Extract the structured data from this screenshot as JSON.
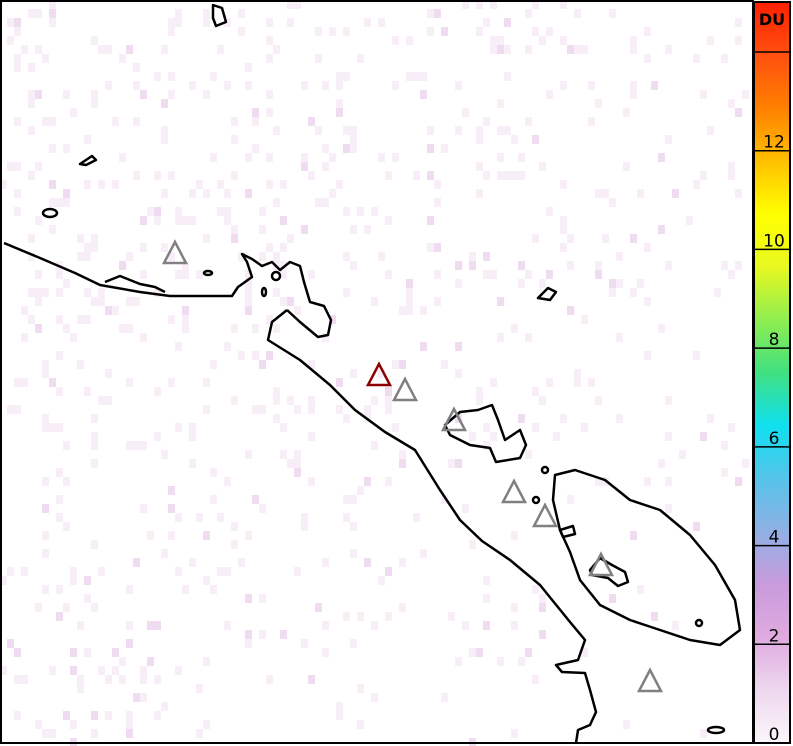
{
  "map": {
    "coastline_color": "#000000",
    "background_color": "#ffffff",
    "volcanoes": [
      {
        "name": "",
        "highlighted": false,
        "color": "#808080"
      },
      {
        "name": "",
        "highlighted": true,
        "color": "#8b0000"
      },
      {
        "name": "",
        "highlighted": false,
        "color": "#808080"
      },
      {
        "name": "",
        "highlighted": false,
        "color": "#808080"
      },
      {
        "name": "",
        "highlighted": false,
        "color": "#808080"
      },
      {
        "name": "",
        "highlighted": false,
        "color": "#808080"
      },
      {
        "name": "",
        "highlighted": false,
        "color": "#808080"
      },
      {
        "name": "",
        "highlighted": false,
        "color": "#808080"
      }
    ]
  },
  "colorbar": {
    "unit": "DU",
    "min": 0,
    "max": 14,
    "ticks": [
      {
        "value": 0,
        "label": "0"
      },
      {
        "value": 2,
        "label": "2"
      },
      {
        "value": 4,
        "label": "4"
      },
      {
        "value": 6,
        "label": "6"
      },
      {
        "value": 8,
        "label": "8"
      },
      {
        "value": 10,
        "label": "10"
      },
      {
        "value": 12,
        "label": "12"
      },
      {
        "value": 14,
        "label": ""
      }
    ],
    "colors": [
      "#fbf6fb",
      "#eed8ee",
      "#dfaadf",
      "#c99bdc",
      "#90b0e4",
      "#55c4ea",
      "#10e0f0",
      "#40e080",
      "#90ee50",
      "#e8f820",
      "#ffff00",
      "#ffc000",
      "#ff8000",
      "#ff5010",
      "#ff2000"
    ]
  }
}
